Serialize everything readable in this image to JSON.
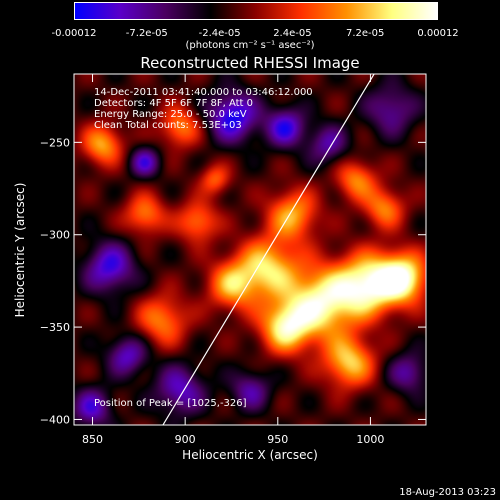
{
  "colorbar": {
    "ticks": [
      "-0.00012",
      "-7.2e-05",
      "-2.4e-05",
      "2.4e-05",
      "7.2e-05",
      "0.00012"
    ],
    "units": "(photons cm⁻² s⁻¹ asec⁻²)",
    "range": [
      -0.00012,
      0.00012
    ]
  },
  "info": {
    "line1": "14-Dec-2011 03:41:40.000 to 03:46:12.000",
    "line2": "Detectors: 4F 5F 6F 7F 8F, Att 0",
    "line3": "Energy Range: 25.0 - 50.0 keV",
    "line4": "Clean    Total counts: 7.53E+03"
  },
  "peak_text": "Position of Peak = [1025,-326]",
  "timestamp": "18-Aug-2013 03:23",
  "chart_data": {
    "type": "heatmap",
    "title": "Reconstructed RHESSI Image",
    "xlabel": "Heliocentric X (arcsec)",
    "ylabel": "Heliocentric Y (arcsec)",
    "xlim": [
      840,
      1030
    ],
    "ylim": [
      -403,
      -213
    ],
    "xticks": [
      850,
      900,
      950,
      1000
    ],
    "yticks": [
      -250,
      -300,
      -350,
      -400
    ],
    "peak": [
      1025,
      -326
    ],
    "limb_line": [
      [
        888,
        -403
      ],
      [
        1002,
        -213
      ]
    ],
    "colormap": [
      "#0000ff",
      "#5a00c8",
      "#4a0060",
      "#000000",
      "#8b0000",
      "#ff3000",
      "#ff9000",
      "#ffff80",
      "#ffffff"
    ]
  }
}
